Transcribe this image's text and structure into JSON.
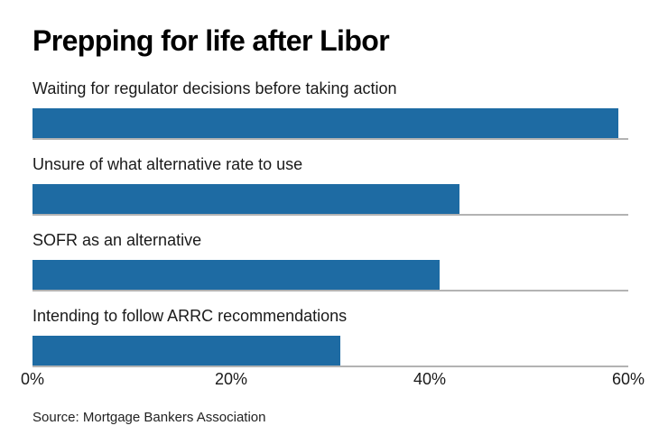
{
  "title": "Prepping for life after Libor",
  "source_note": "Source: Mortgage Bankers Association",
  "colors": {
    "bar": "#1e6ba3",
    "gridline": "#b3b3b3",
    "title_text": "#000000",
    "label_text": "#1a1a1a",
    "background": "#ffffff"
  },
  "chart_data": {
    "type": "bar",
    "orientation": "horizontal",
    "title": "Prepping for life after Libor",
    "categories": [
      "Waiting for regulator decisions before taking action",
      "Unsure of what alternative rate to use",
      "SOFR as an alternative",
      "Intending to follow ARRC recommendations"
    ],
    "values": [
      59,
      43,
      41,
      31
    ],
    "unit": "%",
    "xlim": [
      0,
      60
    ],
    "x_ticks": [
      "0%",
      "20%",
      "40%",
      "60%"
    ],
    "x_tick_positions_pct": [
      0,
      33.333,
      66.667,
      100
    ],
    "xlabel": "",
    "ylabel": "",
    "legend": "none",
    "grid": "horizontal separator line under each bar",
    "source": "Source: Mortgage Bankers Association"
  }
}
